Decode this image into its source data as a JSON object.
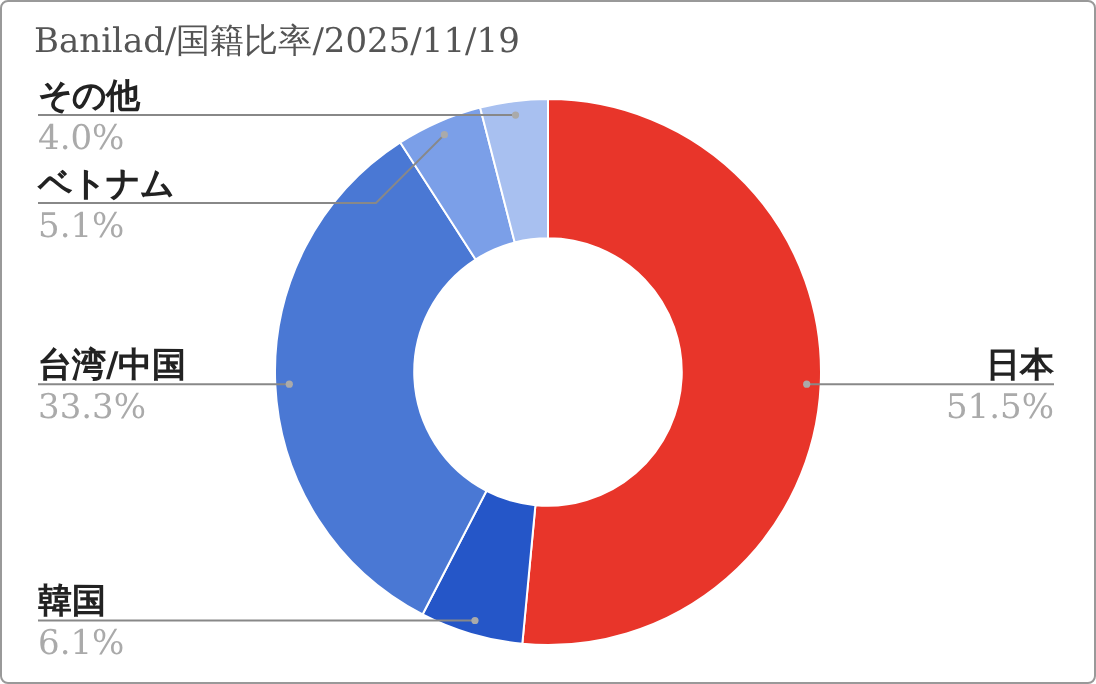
{
  "chart_data": {
    "type": "donut",
    "title": "Banilad/国籍比率/2025/11/19",
    "categories": [
      "日本",
      "韓国",
      "台湾/中国",
      "ベトナム",
      "その他"
    ],
    "values": [
      51.5,
      6.1,
      33.3,
      5.1,
      4.0
    ],
    "colors": [
      "#e8352a",
      "#2556c8",
      "#4a78d4",
      "#7b9fe8",
      "#a8c0f0"
    ],
    "value_labels": [
      "51.5%",
      "6.1%",
      "33.3%",
      "5.1%",
      "4.0%"
    ],
    "legend": false
  }
}
